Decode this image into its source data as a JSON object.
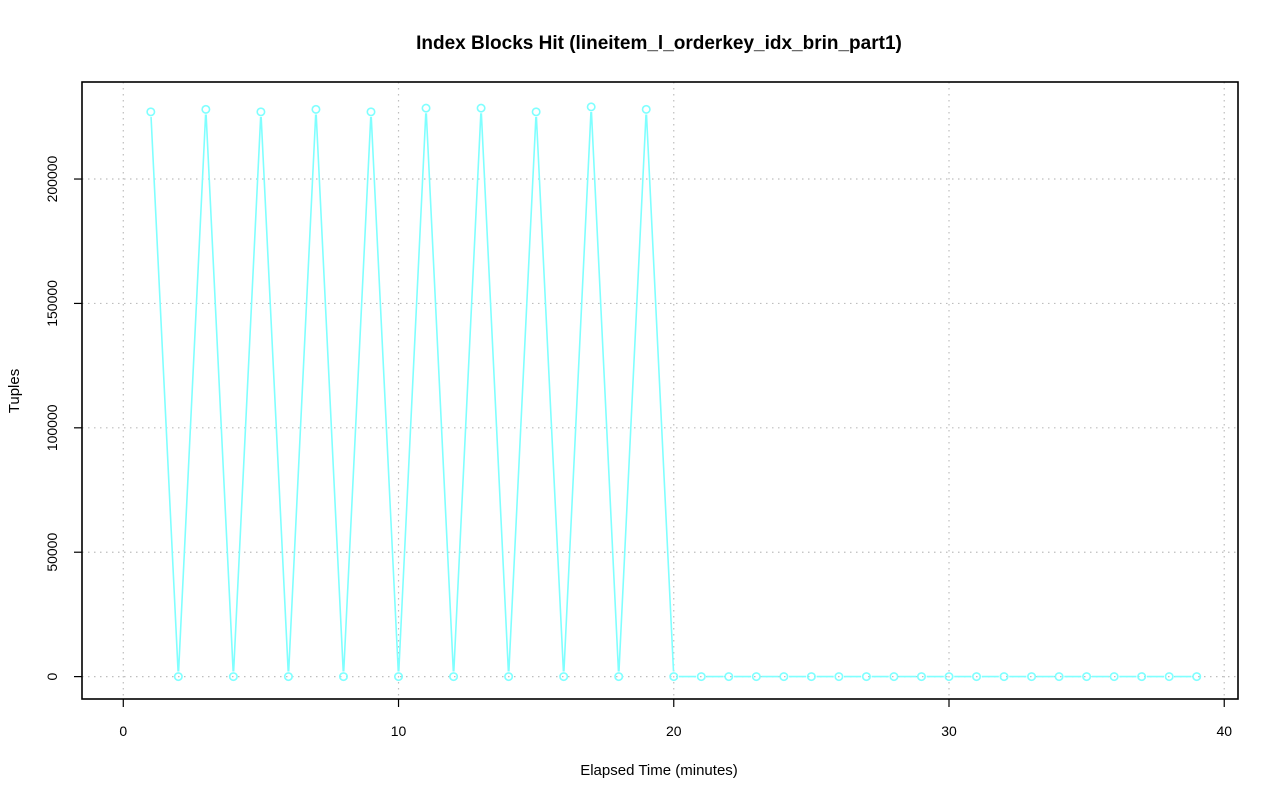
{
  "chart_data": {
    "type": "line",
    "title": "Index Blocks Hit (lineitem_l_orderkey_idx_brin_part1)",
    "xlabel": "Elapsed Time (minutes)",
    "ylabel": "Tuples",
    "xlim": [
      -1.5,
      40.5
    ],
    "ylim": [
      -9000,
      239000
    ],
    "x_ticks": [
      0,
      10,
      20,
      30,
      40
    ],
    "y_ticks": [
      0,
      50000,
      100000,
      150000,
      200000
    ],
    "x_tick_labels": [
      "0",
      "10",
      "20",
      "30",
      "40"
    ],
    "y_tick_labels": [
      "0",
      "50000",
      "100000",
      "150000",
      "200000"
    ],
    "grid": true,
    "legend": "none",
    "series": [
      {
        "color": "#7fffff",
        "x": [
          1,
          2,
          3,
          4,
          5,
          6,
          7,
          8,
          9,
          10,
          11,
          12,
          13,
          14,
          15,
          16,
          17,
          18,
          19,
          20,
          21,
          22,
          23,
          24,
          25,
          26,
          27,
          28,
          29,
          30,
          31,
          32,
          33,
          34,
          35,
          36,
          37,
          38,
          39
        ],
        "y": [
          227000,
          0,
          228000,
          0,
          227000,
          0,
          228000,
          0,
          227000,
          0,
          228500,
          0,
          228500,
          0,
          227000,
          0,
          229000,
          0,
          228000,
          0,
          0,
          0,
          0,
          0,
          0,
          0,
          0,
          0,
          0,
          0,
          0,
          0,
          0,
          0,
          0,
          0,
          0,
          0,
          0
        ]
      }
    ]
  }
}
